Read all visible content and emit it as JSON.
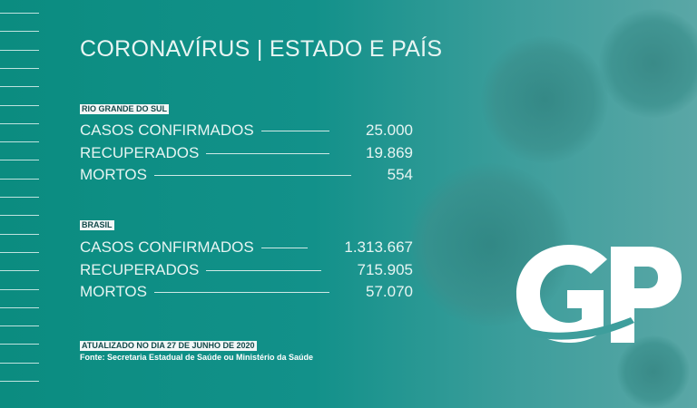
{
  "title": "CORONAVÍRUS | ESTADO E PAÍS",
  "sections": [
    {
      "tag": "RIO GRANDE DO SUL",
      "rows": [
        {
          "label": "CASOS CONFIRMADOS",
          "value": "25.000"
        },
        {
          "label": "RECUPERADOS",
          "value": "19.869"
        },
        {
          "label": "MORTOS",
          "value": "554"
        }
      ]
    },
    {
      "tag": "BRASIL",
      "rows": [
        {
          "label": "CASOS CONFIRMADOS",
          "value": "1.313.667"
        },
        {
          "label": "RECUPERADOS",
          "value": "715.905"
        },
        {
          "label": "MORTOS",
          "value": "57.070"
        }
      ]
    }
  ],
  "footer": {
    "updated": "ATUALIZADO NO DIA 27 DE JUNHO DE 2020",
    "source": "Fonte: Secretaria Estadual de Saúde ou Ministério da Saúde"
  },
  "logo": {
    "text": "GP"
  },
  "colors": {
    "background": "#0b8c80",
    "text": "#e6f4f2"
  }
}
